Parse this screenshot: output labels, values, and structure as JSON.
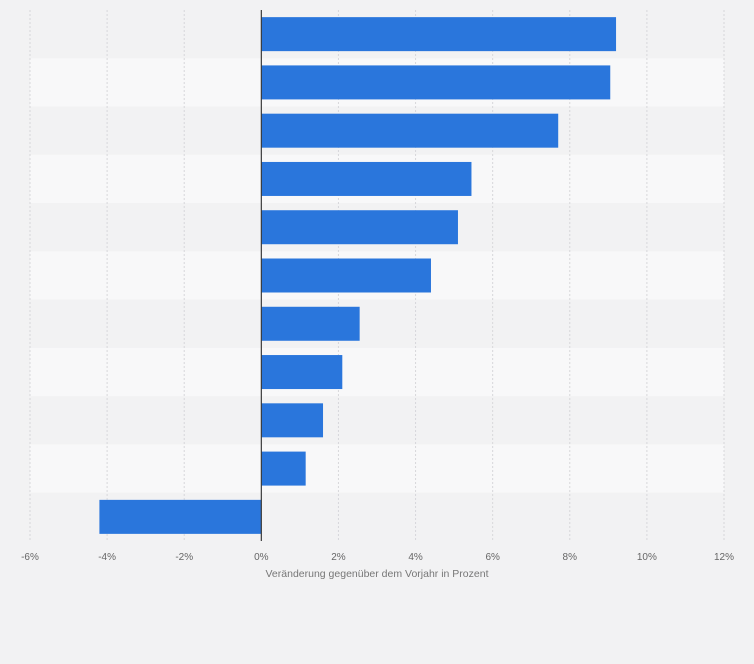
{
  "chart_data": {
    "type": "bar",
    "orientation": "horizontal",
    "categories": [
      "",
      "",
      "",
      "",
      "",
      "",
      "",
      "",
      "",
      "",
      ""
    ],
    "values": [
      9.2,
      9.05,
      7.7,
      5.45,
      5.1,
      4.4,
      2.55,
      2.1,
      1.6,
      1.15,
      -4.2
    ],
    "title": "",
    "xlabel": "Veränderung gegenüber dem Vorjahr in Prozent",
    "ylabel": "",
    "xlim": [
      -6,
      12
    ],
    "xticks": [
      -6,
      -4,
      -2,
      0,
      2,
      4,
      6,
      8,
      10,
      12
    ],
    "xtick_labels": [
      "-6%",
      "-4%",
      "-2%",
      "0%",
      "2%",
      "4%",
      "6%",
      "8%",
      "10%",
      "12%"
    ],
    "grid": true,
    "bar_color": "#2a76dc",
    "band_colors": [
      "#f2f2f3",
      "#f8f8f9"
    ]
  }
}
